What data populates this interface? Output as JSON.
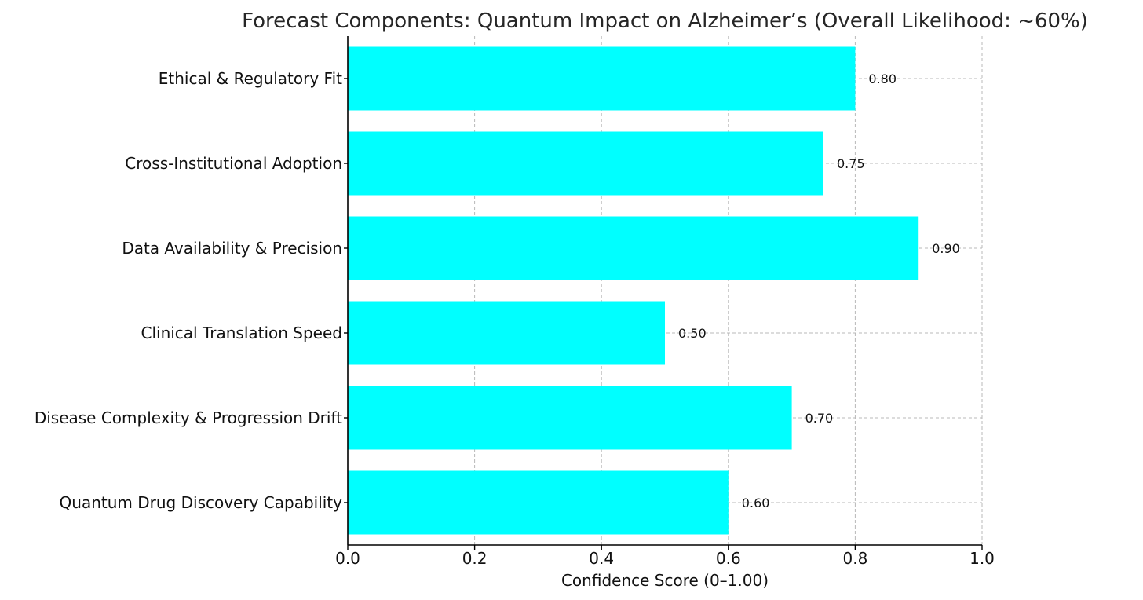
{
  "chart_data": {
    "type": "bar",
    "orientation": "horizontal",
    "title": "Forecast Components: Quantum Impact on Alzheimer’s (Overall Likelihood: ~60%)",
    "xlabel": "Confidence Score (0–1.00)",
    "ylabel": "",
    "xlim": [
      0,
      1.0
    ],
    "xticks": [
      0.0,
      0.2,
      0.4,
      0.6,
      0.8,
      1.0
    ],
    "xtick_labels": [
      "0.0",
      "0.2",
      "0.4",
      "0.6",
      "0.8",
      "1.0"
    ],
    "categories": [
      "Quantum Drug Discovery Capability",
      "Disease Complexity & Progression Drift",
      "Clinical Translation Speed",
      "Data Availability & Precision",
      "Cross-Institutional Adoption",
      "Ethical & Regulatory Fit"
    ],
    "values": [
      0.6,
      0.7,
      0.5,
      0.9,
      0.75,
      0.8
    ],
    "value_labels": [
      "0.60",
      "0.70",
      "0.50",
      "0.90",
      "0.75",
      "0.80"
    ],
    "grid": true,
    "bar_color": "#00ffff"
  }
}
